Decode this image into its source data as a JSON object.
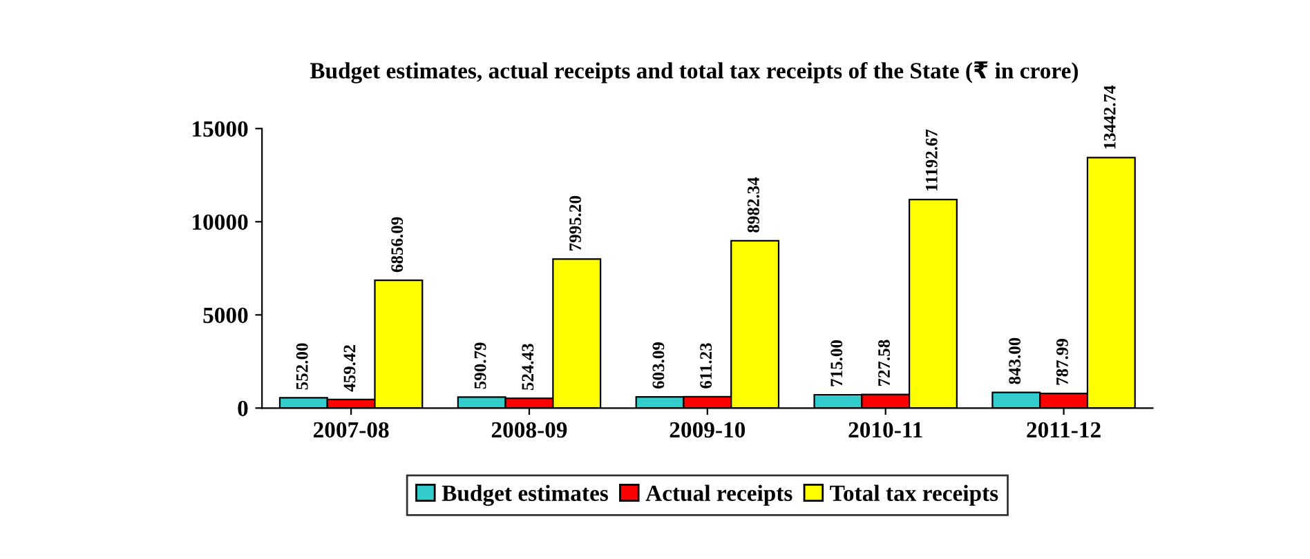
{
  "chart_data": {
    "type": "bar",
    "title": "Budget estimates, actual receipts and total tax receipts of the State (₹ in crore)",
    "categories": [
      "2007-08",
      "2008-09",
      "2009-10",
      "2010-11",
      "2011-12"
    ],
    "series": [
      {
        "name": "Budget estimates",
        "color": "#33cccc",
        "values": [
          552.0,
          590.79,
          603.09,
          715.0,
          843.0
        ],
        "value_labels": [
          "552.00",
          "590.79",
          "603.09",
          "715.00",
          "843.00"
        ]
      },
      {
        "name": "Actual receipts",
        "color": "#ff0000",
        "values": [
          459.42,
          524.43,
          611.23,
          727.58,
          787.99
        ],
        "value_labels": [
          "459.42",
          "524.43",
          "611.23",
          "727.58",
          "787.99"
        ]
      },
      {
        "name": "Total tax receipts",
        "color": "#ffff00",
        "values": [
          6856.09,
          7995.2,
          8982.34,
          11192.67,
          13442.74
        ],
        "value_labels": [
          "6856.09",
          "7995.20",
          "8982.34",
          "11192.67",
          "13442.74"
        ]
      }
    ],
    "ylim": [
      0,
      15000
    ],
    "yticks": [
      0,
      5000,
      10000,
      15000
    ],
    "grid": false,
    "legend": "bottom"
  }
}
